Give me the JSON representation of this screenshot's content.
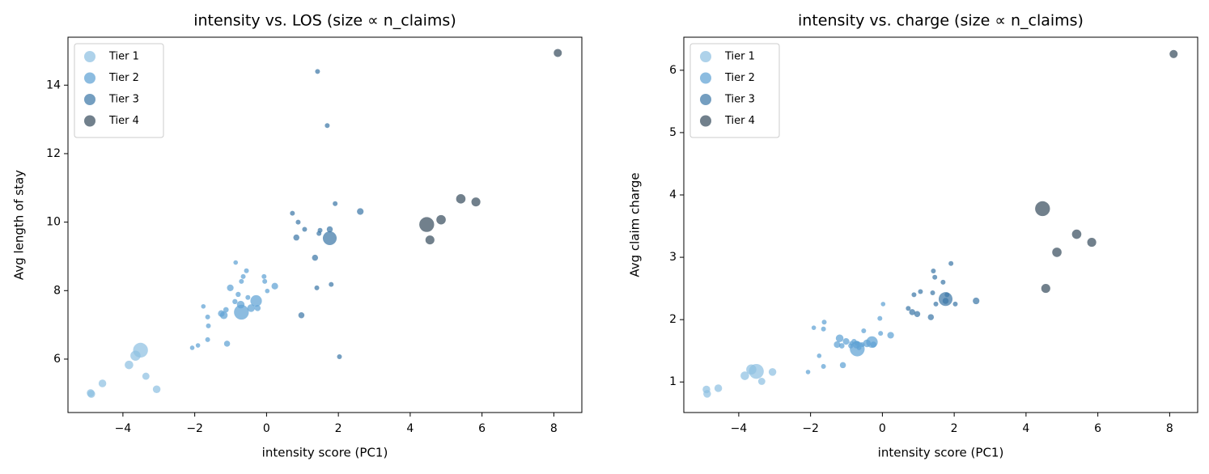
{
  "chart_data": [
    {
      "type": "scatter",
      "title": "intensity vs. LOS (size ∝ n_claims)",
      "xlabel": "intensity score (PC1)",
      "ylabel": "Avg length of stay",
      "xlim": [
        -5.53,
        8.78
      ],
      "ylim": [
        4.44,
        15.4
      ],
      "xticks": [
        {
          "value": -4,
          "label": "−4"
        },
        {
          "value": -2,
          "label": "−2"
        },
        0,
        2,
        4,
        6,
        8
      ],
      "yticks": [
        6,
        8,
        10,
        12,
        14
      ],
      "legend": "upper left",
      "series": [
        {
          "name": "Tier 1",
          "color": "#8fc0e2",
          "x": [
            -4.9,
            -4.88,
            -4.57,
            -3.83,
            -3.65,
            -3.51,
            -3.36,
            -3.06
          ],
          "values": [
            5.01,
            4.98,
            5.29,
            5.83,
            6.1,
            6.26,
            5.5,
            5.12
          ],
          "sizes": [
            40,
            40,
            40,
            50,
            70,
            150,
            35,
            40
          ]
        },
        {
          "name": "Tier 2",
          "color": "#5fa2d4",
          "x": [
            -2.07,
            -1.91,
            -1.76,
            -1.64,
            -1.62,
            -1.64,
            -1.26,
            -1.19,
            -1.13,
            -1.1,
            -1.01,
            -0.86,
            -0.88,
            -0.79,
            -0.72,
            -0.7,
            -0.65,
            -0.7,
            -0.56,
            -0.52,
            -0.43,
            -0.29,
            -0.25,
            -0.07,
            -0.05,
            0.02,
            0.23
          ],
          "values": [
            6.33,
            6.4,
            7.54,
            7.23,
            6.97,
            6.57,
            7.33,
            7.28,
            7.44,
            6.45,
            8.08,
            8.82,
            7.68,
            7.89,
            7.59,
            8.27,
            8.41,
            7.37,
            8.58,
            7.8,
            7.49,
            7.7,
            7.49,
            8.41,
            8.27,
            7.99,
            8.13
          ],
          "sizes": [
            14,
            14,
            14,
            16,
            16,
            16,
            30,
            40,
            20,
            25,
            30,
            14,
            18,
            18,
            40,
            16,
            16,
            150,
            16,
            16,
            40,
            90,
            25,
            16,
            16,
            14,
            30
          ]
        },
        {
          "name": "Tier 3",
          "color": "#3f79a8",
          "x": [
            0.72,
            0.83,
            0.88,
            1.06,
            0.97,
            1.35,
            1.4,
            1.42,
            1.46,
            1.49,
            1.69,
            1.76,
            1.76,
            1.8,
            1.91,
            2.03,
            2.61
          ],
          "values": [
            10.26,
            9.55,
            10.0,
            9.79,
            7.28,
            8.96,
            8.08,
            14.4,
            9.67,
            9.76,
            12.82,
            9.79,
            9.53,
            8.18,
            10.54,
            6.07,
            10.31
          ],
          "sizes": [
            16,
            25,
            16,
            16,
            25,
            25,
            16,
            16,
            16,
            16,
            16,
            25,
            130,
            16,
            16,
            16,
            30
          ]
        },
        {
          "name": "Tier 4",
          "color": "#3a4f60",
          "x": [
            4.46,
            4.55,
            4.86,
            5.41,
            5.83,
            8.11
          ],
          "values": [
            9.93,
            9.48,
            10.07,
            10.68,
            10.59,
            14.94
          ],
          "sizes": [
            150,
            55,
            60,
            60,
            55,
            45
          ]
        }
      ]
    },
    {
      "type": "scatter",
      "title": "intensity vs. charge (size ∝ n_claims)",
      "xlabel": "intensity score (PC1)",
      "ylabel": "Avg claim charge",
      "xlim": [
        -5.53,
        8.78
      ],
      "ylim": [
        0.51,
        6.53
      ],
      "xticks": [
        {
          "value": -4,
          "label": "−4"
        },
        {
          "value": -2,
          "label": "−2"
        },
        0,
        2,
        4,
        6,
        8
      ],
      "yticks": [
        1,
        2,
        3,
        4,
        5,
        6
      ],
      "legend": "upper left",
      "series": [
        {
          "name": "Tier 1",
          "color": "#8fc0e2",
          "x": [
            -4.9,
            -4.88,
            -4.57,
            -3.83,
            -3.65,
            -3.51,
            -3.36,
            -3.06
          ],
          "values": [
            0.88,
            0.81,
            0.9,
            1.1,
            1.2,
            1.17,
            1.01,
            1.16
          ],
          "sizes": [
            40,
            40,
            40,
            50,
            70,
            150,
            35,
            40
          ]
        },
        {
          "name": "Tier 2",
          "color": "#5fa2d4",
          "x": [
            -2.07,
            -1.91,
            -1.76,
            -1.64,
            -1.62,
            -1.64,
            -1.26,
            -1.19,
            -1.13,
            -1.1,
            -1.01,
            -0.86,
            -0.88,
            -0.79,
            -0.72,
            -0.7,
            -0.65,
            -0.7,
            -0.56,
            -0.52,
            -0.43,
            -0.29,
            -0.25,
            -0.07,
            -0.05,
            0.02,
            0.23
          ],
          "values": [
            1.16,
            1.87,
            1.42,
            1.25,
            1.96,
            1.85,
            1.6,
            1.7,
            1.58,
            1.27,
            1.65,
            1.62,
            1.58,
            1.65,
            1.6,
            1.62,
            1.55,
            1.53,
            1.6,
            1.82,
            1.62,
            1.64,
            1.6,
            2.02,
            1.78,
            2.25,
            1.75
          ],
          "sizes": [
            14,
            14,
            14,
            16,
            16,
            16,
            30,
            40,
            20,
            25,
            30,
            14,
            18,
            18,
            40,
            16,
            16,
            150,
            16,
            16,
            40,
            90,
            25,
            16,
            16,
            14,
            30
          ]
        },
        {
          "name": "Tier 3",
          "color": "#3f79a8",
          "x": [
            0.72,
            0.83,
            0.88,
            1.06,
            0.97,
            1.35,
            1.4,
            1.42,
            1.46,
            1.49,
            1.69,
            1.76,
            1.76,
            1.8,
            1.91,
            2.03,
            2.61
          ],
          "values": [
            2.18,
            2.12,
            2.4,
            2.45,
            2.09,
            2.04,
            2.43,
            2.78,
            2.68,
            2.25,
            2.6,
            2.3,
            2.33,
            2.4,
            2.9,
            2.25,
            2.3
          ],
          "sizes": [
            16,
            25,
            16,
            16,
            25,
            25,
            16,
            16,
            16,
            16,
            16,
            25,
            130,
            16,
            16,
            16,
            30
          ]
        },
        {
          "name": "Tier 4",
          "color": "#3a4f60",
          "x": [
            4.46,
            4.55,
            4.86,
            5.41,
            5.83,
            8.11
          ],
          "values": [
            3.78,
            2.5,
            3.08,
            3.37,
            3.24,
            6.26
          ],
          "sizes": [
            150,
            55,
            60,
            60,
            55,
            45
          ]
        }
      ]
    }
  ]
}
